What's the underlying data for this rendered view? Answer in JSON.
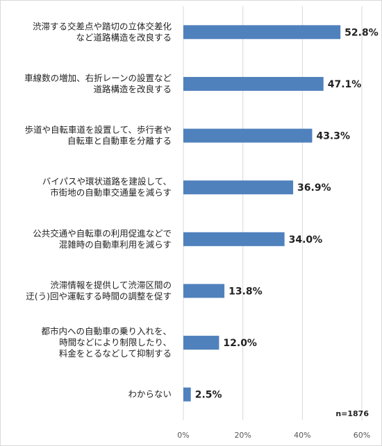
{
  "chart_data": {
    "type": "bar",
    "orientation": "horizontal",
    "categories": [
      [
        "渋滞する交差点や踏切の立体交差化",
        "など道路構造を改良する"
      ],
      [
        "車線数の増加、右折レーンの設置など",
        "道路構造を改良する"
      ],
      [
        "歩道や自転車道を設置して、歩行者や",
        "自転車と自動車を分離する"
      ],
      [
        "バイパスや環状道路を建設して、",
        "市街地の自動車交通量を減らす"
      ],
      [
        "公共交通や自転車の利用促進などで",
        "混雑時の自動車利用を減らす"
      ],
      [
        "渋滞情報を提供して渋滞区間の",
        "迂(う)回や運転する時間の調整を促す"
      ],
      [
        "都市内への自動車の乗り入れを、",
        "時間などにより制限したり、",
        "料金をとるなどして抑制する"
      ],
      [
        "わからない"
      ]
    ],
    "values": [
      52.8,
      47.1,
      43.3,
      36.9,
      34.0,
      13.8,
      12.0,
      2.5
    ],
    "value_labels": [
      "52.8%",
      "47.1%",
      "43.3%",
      "36.9%",
      "34.0%",
      "13.8%",
      "12.0%",
      "2.5%"
    ],
    "xlim": [
      0,
      60
    ],
    "xticks": [
      "0%",
      "20%",
      "40%",
      "60%"
    ],
    "grid": true,
    "note": "n=1876",
    "bar_color": "#4f81bd",
    "grid_color": "#d9d9d9"
  }
}
